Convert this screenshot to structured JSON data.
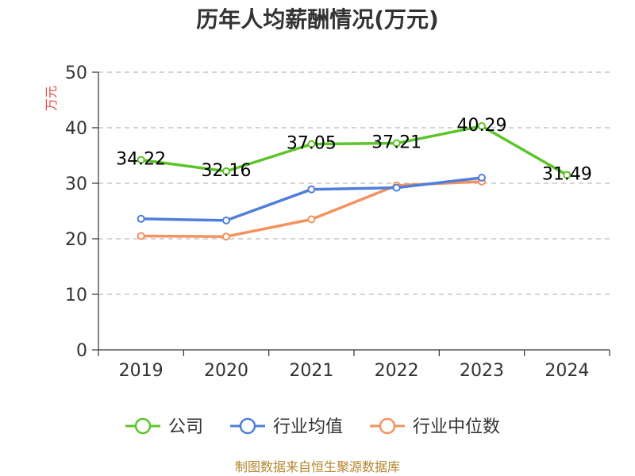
{
  "chart_data": {
    "type": "line",
    "title": "历年人均薪酬情况(万元)",
    "ylabel": "万元",
    "ylim": [
      0,
      50
    ],
    "yticks": [
      0,
      10,
      20,
      30,
      40,
      50
    ],
    "categories": [
      "2019",
      "2020",
      "2021",
      "2022",
      "2023",
      "2024"
    ],
    "grid": true,
    "legend_position": "bottom",
    "series": [
      {
        "name": "公司",
        "color": "#5bc429",
        "values": [
          34.22,
          32.16,
          37.05,
          37.21,
          40.29,
          31.49
        ],
        "show_labels": true
      },
      {
        "name": "行业均值",
        "color": "#4f7fd8",
        "values": [
          23.6,
          23.3,
          28.9,
          29.2,
          31.0,
          null
        ],
        "show_labels": false
      },
      {
        "name": "行业中位数",
        "color": "#f5925e",
        "values": [
          20.5,
          20.4,
          23.5,
          29.6,
          30.3,
          null
        ],
        "show_labels": false
      }
    ]
  },
  "source_text": "制图数据来自恒生聚源数据库"
}
